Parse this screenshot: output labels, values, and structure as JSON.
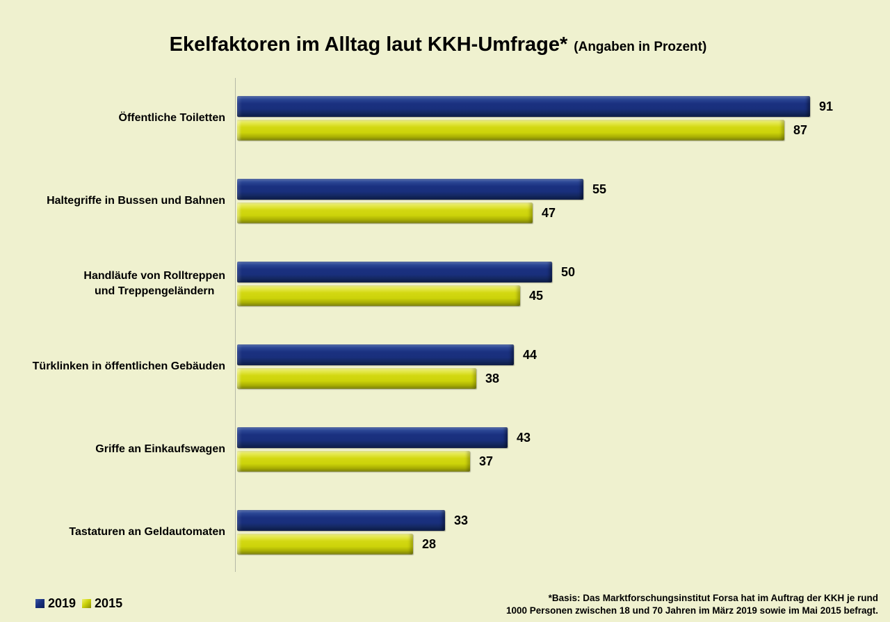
{
  "title": {
    "main": "Ekelfaktoren im Alltag laut KKH-Umfrage*",
    "suffix": "(Angaben in Prozent)"
  },
  "footnote": {
    "line1": "*Basis: Das Marktforschungsinstitut Forsa hat im Auftrag der KKH je rund",
    "line2": "1000 Personen zwischen 18 und 70 Jahren im März 2019 sowie im Mai 2015 befragt."
  },
  "colors": {
    "background": "#eff1cf",
    "bar_2019": "#1a3180",
    "bar_2015": "#ccd30a",
    "axis_line": "#b5b8a6",
    "text": "#000000"
  },
  "chart_data": {
    "type": "bar",
    "orientation": "horizontal",
    "title": "Ekelfaktoren im Alltag laut KKH-Umfrage* (Angaben in Prozent)",
    "categories": [
      "Öffentliche Toiletten",
      "Haltegriffe in Bussen und Bahnen",
      "Handläufe von Rolltreppen\nund Treppengeländern",
      "Türklinken in öffentlichen Gebäuden",
      "Griffe an Einkaufswagen",
      "Tastaturen an Geldautomaten"
    ],
    "series": [
      {
        "name": "2019",
        "color": "#1a3180",
        "values": [
          91,
          55,
          50,
          44,
          43,
          33
        ]
      },
      {
        "name": "2015",
        "color": "#ccd30a",
        "values": [
          87,
          47,
          45,
          38,
          37,
          28
        ]
      }
    ],
    "xlim": [
      0,
      100
    ],
    "unit": "percent",
    "grid": false,
    "value_labels": true,
    "legend_position": "bottom-left"
  }
}
